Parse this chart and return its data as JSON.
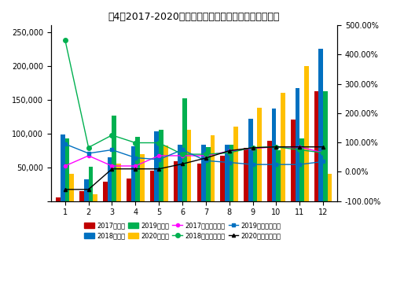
{
  "title": "图4：2017-2020年月度新能源汽车销量及同比变化情况",
  "months": [
    1,
    2,
    3,
    4,
    5,
    6,
    7,
    8,
    9,
    10,
    11,
    12
  ],
  "sales_2017": [
    5000,
    15000,
    29000,
    33000,
    45000,
    59000,
    55000,
    67000,
    79000,
    89000,
    120000,
    162000
  ],
  "sales_2018": [
    99000,
    32000,
    65000,
    81000,
    103000,
    83000,
    83000,
    83000,
    122000,
    137000,
    167000,
    225000
  ],
  "sales_2019": [
    93000,
    51000,
    126000,
    95000,
    105000,
    152000,
    80000,
    83000,
    80000,
    75000,
    93000,
    162000
  ],
  "sales_2020": [
    40000,
    10000,
    55000,
    70000,
    82000,
    105000,
    97000,
    110000,
    138000,
    160000,
    200000,
    40000
  ],
  "yoy_2017": [
    0.2,
    0.55,
    0.2,
    0.2,
    0.55,
    0.55,
    0.55,
    0.7,
    0.8,
    0.85,
    0.85,
    0.65
  ],
  "yoy_2018": [
    4.5,
    0.83,
    1.25,
    0.99,
    0.99,
    0.6,
    0.6,
    0.65,
    0.83,
    0.85,
    0.75,
    0.65
  ],
  "yoy_2019": [
    0.95,
    0.63,
    0.75,
    0.48,
    0.42,
    0.75,
    0.38,
    0.32,
    0.25,
    0.25,
    0.25,
    0.35
  ],
  "yoy_2020": [
    -0.6,
    -0.6,
    0.1,
    0.1,
    0.1,
    0.27,
    0.47,
    0.72,
    0.82,
    0.85,
    0.85,
    0.85
  ],
  "bar_colors": [
    "#c00000",
    "#0070c0",
    "#00b050",
    "#ffc000"
  ],
  "line_colors": [
    "#ff00ff",
    "#00b050",
    "#0070c0",
    "#000000"
  ],
  "ylim_left": [
    0,
    260000
  ],
  "ylim_right": [
    -1.0,
    5.0
  ],
  "yticks_left": [
    0,
    50000,
    100000,
    150000,
    200000,
    250000
  ],
  "yticks_right": [
    -1.0,
    0.0,
    1.0,
    2.0,
    3.0,
    4.0,
    5.0
  ],
  "ytick_right_labels": [
    "-100.00%",
    "0.00%",
    "100.00%",
    "200.00%",
    "300.00%",
    "400.00%",
    "500.00%"
  ],
  "legend_sales": [
    "2017年销量",
    "2018年销量",
    "2019年销量",
    "2020年销量"
  ],
  "legend_yoy": [
    "2017年同比增长率",
    "2018年同比增长率",
    "2019年同比增长率",
    "2020年同比增长率"
  ],
  "bg_color": "#ffffff"
}
